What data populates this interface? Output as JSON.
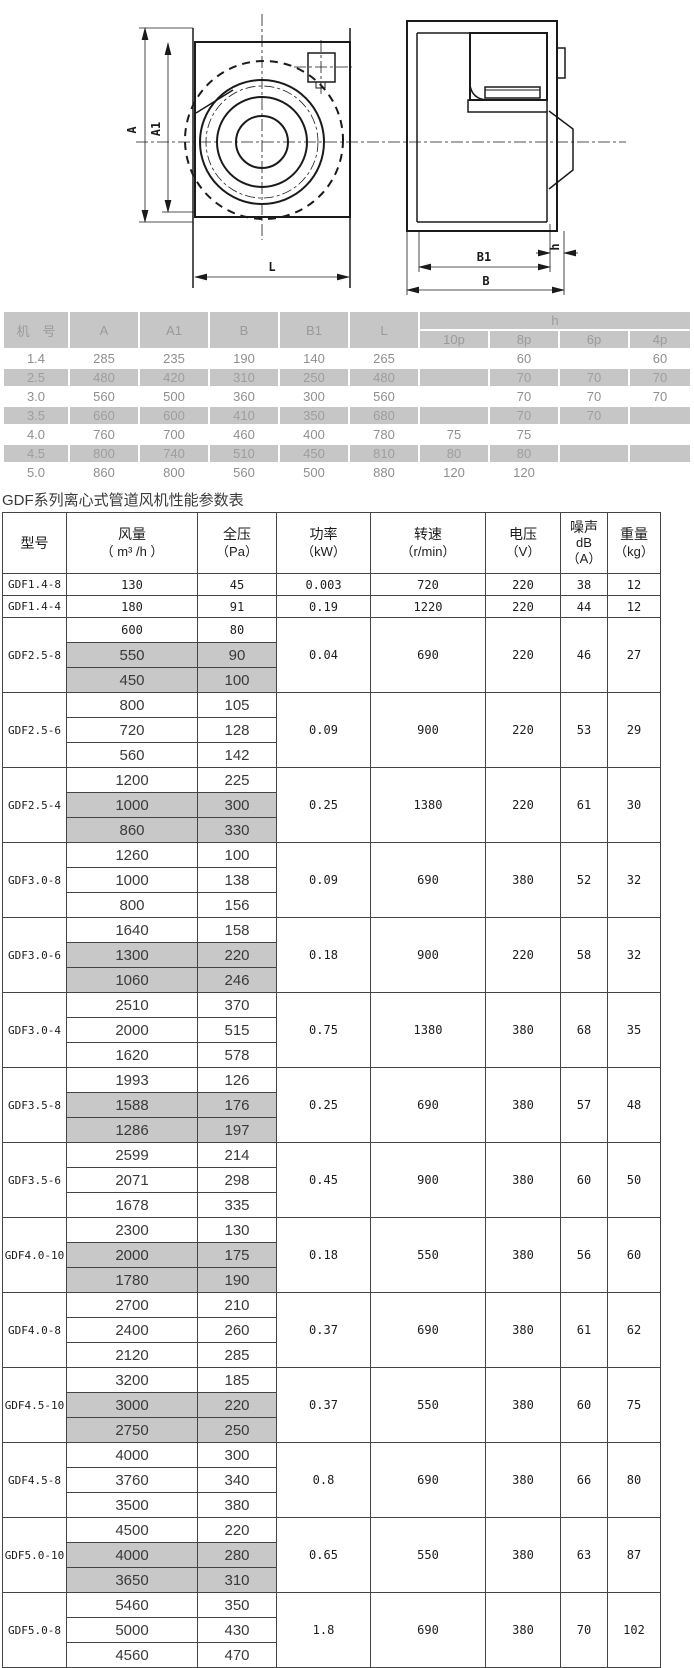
{
  "drawing": {
    "labels": {
      "a": "A",
      "a1": "A1",
      "l": "L",
      "b1": "B1",
      "b": "B",
      "h": "h"
    }
  },
  "dim_table": {
    "col_headers": [
      "机　号",
      "A",
      "A1",
      "B",
      "B1",
      "L"
    ],
    "h_header": "h",
    "pole_headers": [
      "10p",
      "8p",
      "6p",
      "4p"
    ],
    "rows": [
      {
        "shaded": false,
        "cells": [
          "1.4",
          "285",
          "235",
          "190",
          "140",
          "265",
          "",
          "60",
          "",
          "60"
        ]
      },
      {
        "shaded": true,
        "cells": [
          "2.5",
          "480",
          "420",
          "310",
          "250",
          "480",
          "",
          "70",
          "70",
          "70"
        ]
      },
      {
        "shaded": false,
        "cells": [
          "3.0",
          "560",
          "500",
          "360",
          "300",
          "560",
          "",
          "70",
          "70",
          "70"
        ]
      },
      {
        "shaded": true,
        "cells": [
          "3.5",
          "660",
          "600",
          "410",
          "350",
          "680",
          "",
          "70",
          "70",
          ""
        ]
      },
      {
        "shaded": false,
        "cells": [
          "4.0",
          "760",
          "700",
          "460",
          "400",
          "780",
          "75",
          "75",
          "",
          ""
        ]
      },
      {
        "shaded": true,
        "cells": [
          "4.5",
          "800",
          "740",
          "510",
          "450",
          "810",
          "80",
          "80",
          "",
          ""
        ]
      },
      {
        "shaded": false,
        "cells": [
          "5.0",
          "860",
          "800",
          "560",
          "500",
          "880",
          "120",
          "120",
          "",
          ""
        ]
      }
    ]
  },
  "perf_table": {
    "title": "GDF系列离心式管道风机性能参数表",
    "headers": {
      "model": "型号",
      "flow": [
        "风量",
        "（ m³ /h ）"
      ],
      "pressure": [
        "全压",
        "（Pa）"
      ],
      "power": [
        "功率",
        "（kW）"
      ],
      "speed": [
        "转速",
        "（r/min）"
      ],
      "voltage": [
        "电压",
        "（V）"
      ],
      "noise": [
        "噪声",
        "dB",
        "（A）"
      ],
      "weight": [
        "重量",
        "（kg）"
      ]
    },
    "groups": [
      {
        "model": "GDF1.4-8",
        "rows": [
          {
            "flow": "130",
            "pressure": "45",
            "shaded": false,
            "small": true
          }
        ],
        "power": "0.003",
        "speed": "720",
        "voltage": "220",
        "noise": "38",
        "weight": "12"
      },
      {
        "model": "GDF1.4-4",
        "rows": [
          {
            "flow": "180",
            "pressure": "91",
            "shaded": false,
            "small": true
          }
        ],
        "power": "0.19",
        "speed": "1220",
        "voltage": "220",
        "noise": "44",
        "weight": "12"
      },
      {
        "model": "GDF2.5-8",
        "rows": [
          {
            "flow": "600",
            "pressure": "80",
            "shaded": false,
            "small": true
          },
          {
            "flow": "550",
            "pressure": "90",
            "shaded": true,
            "small": false
          },
          {
            "flow": "450",
            "pressure": "100",
            "shaded": true,
            "small": false
          }
        ],
        "power": "0.04",
        "speed": "690",
        "voltage": "220",
        "noise": "46",
        "weight": "27"
      },
      {
        "model": "GDF2.5-6",
        "rows": [
          {
            "flow": "800",
            "pressure": "105",
            "shaded": false,
            "small": false
          },
          {
            "flow": "720",
            "pressure": "128",
            "shaded": false,
            "small": false
          },
          {
            "flow": "560",
            "pressure": "142",
            "shaded": false,
            "small": false
          }
        ],
        "power": "0.09",
        "speed": "900",
        "voltage": "220",
        "noise": "53",
        "weight": "29"
      },
      {
        "model": "GDF2.5-4",
        "rows": [
          {
            "flow": "1200",
            "pressure": "225",
            "shaded": false,
            "small": false
          },
          {
            "flow": "1000",
            "pressure": "300",
            "shaded": true,
            "small": false
          },
          {
            "flow": "860",
            "pressure": "330",
            "shaded": true,
            "small": false
          }
        ],
        "power": "0.25",
        "speed": "1380",
        "voltage": "220",
        "noise": "61",
        "weight": "30"
      },
      {
        "model": "GDF3.0-8",
        "rows": [
          {
            "flow": "1260",
            "pressure": "100",
            "shaded": false,
            "small": false
          },
          {
            "flow": "1000",
            "pressure": "138",
            "shaded": false,
            "small": false
          },
          {
            "flow": "800",
            "pressure": "156",
            "shaded": false,
            "small": false
          }
        ],
        "power": "0.09",
        "speed": "690",
        "voltage": "380",
        "noise": "52",
        "weight": "32"
      },
      {
        "model": "GDF3.0-6",
        "rows": [
          {
            "flow": "1640",
            "pressure": "158",
            "shaded": false,
            "small": false
          },
          {
            "flow": "1300",
            "pressure": "220",
            "shaded": true,
            "small": false
          },
          {
            "flow": "1060",
            "pressure": "246",
            "shaded": true,
            "small": false
          }
        ],
        "power": "0.18",
        "speed": "900",
        "voltage": "220",
        "noise": "58",
        "weight": "32"
      },
      {
        "model": "GDF3.0-4",
        "rows": [
          {
            "flow": "2510",
            "pressure": "370",
            "shaded": false,
            "small": false
          },
          {
            "flow": "2000",
            "pressure": "515",
            "shaded": false,
            "small": false
          },
          {
            "flow": "1620",
            "pressure": "578",
            "shaded": false,
            "small": false
          }
        ],
        "power": "0.75",
        "speed": "1380",
        "voltage": "380",
        "noise": "68",
        "weight": "35"
      },
      {
        "model": "GDF3.5-8",
        "rows": [
          {
            "flow": "1993",
            "pressure": "126",
            "shaded": false,
            "small": false
          },
          {
            "flow": "1588",
            "pressure": "176",
            "shaded": true,
            "small": false
          },
          {
            "flow": "1286",
            "pressure": "197",
            "shaded": true,
            "small": false
          }
        ],
        "power": "0.25",
        "speed": "690",
        "voltage": "380",
        "noise": "57",
        "weight": "48"
      },
      {
        "model": "GDF3.5-6",
        "rows": [
          {
            "flow": "2599",
            "pressure": "214",
            "shaded": false,
            "small": false
          },
          {
            "flow": "2071",
            "pressure": "298",
            "shaded": false,
            "small": false
          },
          {
            "flow": "1678",
            "pressure": "335",
            "shaded": false,
            "small": false
          }
        ],
        "power": "0.45",
        "speed": "900",
        "voltage": "380",
        "noise": "60",
        "weight": "50"
      },
      {
        "model": "GDF4.0-10",
        "rows": [
          {
            "flow": "2300",
            "pressure": "130",
            "shaded": false,
            "small": false
          },
          {
            "flow": "2000",
            "pressure": "175",
            "shaded": true,
            "small": false
          },
          {
            "flow": "1780",
            "pressure": "190",
            "shaded": true,
            "small": false
          }
        ],
        "power": "0.18",
        "speed": "550",
        "voltage": "380",
        "noise": "56",
        "weight": "60"
      },
      {
        "model": "GDF4.0-8",
        "rows": [
          {
            "flow": "2700",
            "pressure": "210",
            "shaded": false,
            "small": false
          },
          {
            "flow": "2400",
            "pressure": "260",
            "shaded": false,
            "small": false
          },
          {
            "flow": "2120",
            "pressure": "285",
            "shaded": false,
            "small": false
          }
        ],
        "power": "0.37",
        "speed": "690",
        "voltage": "380",
        "noise": "61",
        "weight": "62"
      },
      {
        "model": "GDF4.5-10",
        "rows": [
          {
            "flow": "3200",
            "pressure": "185",
            "shaded": false,
            "small": false
          },
          {
            "flow": "3000",
            "pressure": "220",
            "shaded": true,
            "small": false
          },
          {
            "flow": "2750",
            "pressure": "250",
            "shaded": true,
            "small": false
          }
        ],
        "power": "0.37",
        "speed": "550",
        "voltage": "380",
        "noise": "60",
        "weight": "75"
      },
      {
        "model": "GDF4.5-8",
        "rows": [
          {
            "flow": "4000",
            "pressure": "300",
            "shaded": false,
            "small": false
          },
          {
            "flow": "3760",
            "pressure": "340",
            "shaded": false,
            "small": false
          },
          {
            "flow": "3500",
            "pressure": "380",
            "shaded": false,
            "small": false
          }
        ],
        "power": "0.8",
        "speed": "690",
        "voltage": "380",
        "noise": "66",
        "weight": "80"
      },
      {
        "model": "GDF5.0-10",
        "rows": [
          {
            "flow": "4500",
            "pressure": "220",
            "shaded": false,
            "small": false
          },
          {
            "flow": "4000",
            "pressure": "280",
            "shaded": true,
            "small": false
          },
          {
            "flow": "3650",
            "pressure": "310",
            "shaded": true,
            "small": false
          }
        ],
        "power": "0.65",
        "speed": "550",
        "voltage": "380",
        "noise": "63",
        "weight": "87"
      },
      {
        "model": "GDF5.0-8",
        "rows": [
          {
            "flow": "5460",
            "pressure": "350",
            "shaded": false,
            "small": false
          },
          {
            "flow": "5000",
            "pressure": "430",
            "shaded": false,
            "small": false
          },
          {
            "flow": "4560",
            "pressure": "470",
            "shaded": false,
            "small": false
          }
        ],
        "power": "1.8",
        "speed": "690",
        "voltage": "380",
        "noise": "70",
        "weight": "102"
      }
    ]
  }
}
